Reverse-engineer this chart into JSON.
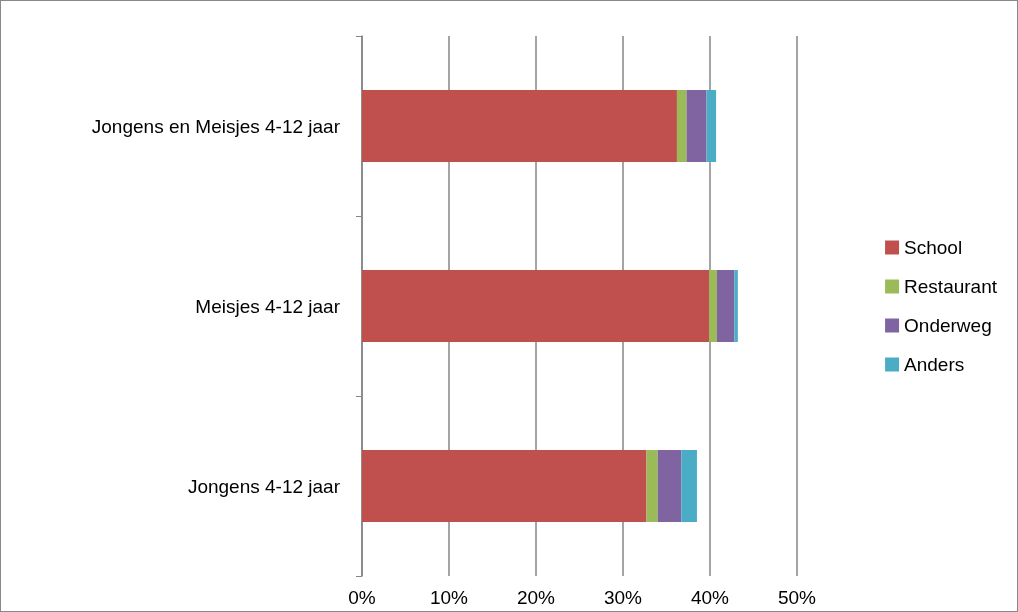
{
  "chart_data": {
    "type": "bar",
    "orientation": "horizontal",
    "stacked": true,
    "grid": "x",
    "legend": "right",
    "categories": [
      "Jongens en Meisjes 4-12 jaar",
      "Meisjes 4-12 jaar",
      "Jongens 4-12 jaar"
    ],
    "series": [
      {
        "name": "School",
        "color": "#c0504d",
        "values": [
          36.2,
          39.9,
          32.7
        ]
      },
      {
        "name": "Restaurant",
        "color": "#9bbb59",
        "values": [
          1.1,
          0.9,
          1.3
        ]
      },
      {
        "name": "Onderweg",
        "color": "#8064a2",
        "values": [
          2.3,
          2.0,
          2.7
        ]
      },
      {
        "name": "Anders",
        "color": "#4bacc6",
        "values": [
          1.1,
          0.4,
          1.8
        ]
      }
    ],
    "xlim": [
      0,
      50
    ],
    "xticks": [
      {
        "value": 0,
        "label": "0%"
      },
      {
        "value": 10,
        "label": "10%"
      },
      {
        "value": 20,
        "label": "20%"
      },
      {
        "value": 30,
        "label": "30%"
      },
      {
        "value": 40,
        "label": "40%"
      },
      {
        "value": 50,
        "label": "50%"
      }
    ]
  }
}
